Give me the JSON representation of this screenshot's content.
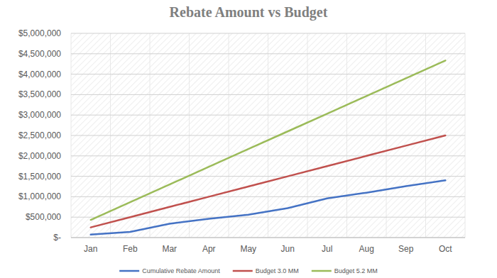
{
  "chart_data": {
    "type": "line",
    "title": "Rebate Amount vs Budget",
    "categories": [
      "Jan",
      "Feb",
      "Mar",
      "Apr",
      "May",
      "Jun",
      "Jul",
      "Aug",
      "Sep",
      "Oct"
    ],
    "series": [
      {
        "name": "Cumulative Rebate Amount",
        "color": "#4472c4",
        "values": [
          75000,
          140000,
          340000,
          460000,
          560000,
          720000,
          960000,
          1100000,
          1260000,
          1400000
        ]
      },
      {
        "name": "Budget 3.0 MM",
        "color": "#c0504d",
        "values": [
          250000,
          500000,
          750000,
          1000000,
          1250000,
          1500000,
          1750000,
          2000000,
          2250000,
          2500000
        ]
      },
      {
        "name": "Budget 5.2 MM",
        "color": "#9bbb59",
        "values": [
          433333,
          866667,
          1300000,
          1733333,
          2166667,
          2600000,
          3033333,
          3466667,
          3900000,
          4333333
        ]
      }
    ],
    "ylim": [
      0,
      5000000
    ],
    "yticks": [
      {
        "value": 0,
        "label": "$-"
      },
      {
        "value": 500000,
        "label": "$500,000"
      },
      {
        "value": 1000000,
        "label": "$1,000,000"
      },
      {
        "value": 1500000,
        "label": "$1,500,000"
      },
      {
        "value": 2000000,
        "label": "$2,000,000"
      },
      {
        "value": 2500000,
        "label": "$2,500,000"
      },
      {
        "value": 3000000,
        "label": "$3,000,000"
      },
      {
        "value": 3500000,
        "label": "$3,500,000"
      },
      {
        "value": 4000000,
        "label": "$4,000,000"
      },
      {
        "value": 4500000,
        "label": "$4,500,000"
      },
      {
        "value": 5000000,
        "label": "$5,000,000"
      }
    ],
    "grid": true,
    "legend": "bottom"
  }
}
